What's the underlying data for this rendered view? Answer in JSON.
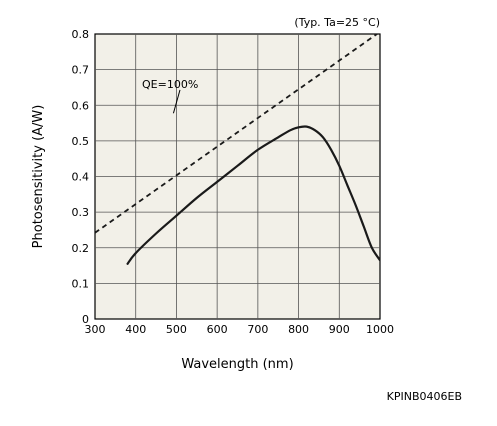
{
  "chart_data": {
    "type": "line",
    "note": "(Typ. Ta=25 °C)",
    "xlabel": "Wavelength (nm)",
    "ylabel": "Photosensitivity (A/W)",
    "xlim": [
      300,
      1000
    ],
    "ylim": [
      0,
      0.8
    ],
    "x_ticks": [
      300,
      400,
      500,
      600,
      700,
      800,
      900,
      1000
    ],
    "y_ticks": [
      "0",
      "0.1",
      "0.2",
      "0.3",
      "0.4",
      "0.5",
      "0.6",
      "0.7",
      "0.8"
    ],
    "grid": true,
    "background_color": "#f2f0e8",
    "series": [
      {
        "style": "solid",
        "x": [
          380,
          400,
          450,
          500,
          550,
          600,
          650,
          700,
          750,
          780,
          800,
          820,
          840,
          860,
          880,
          900,
          920,
          940,
          960,
          980,
          1000
        ],
        "y": [
          0.155,
          0.185,
          0.24,
          0.29,
          0.34,
          0.385,
          0.43,
          0.475,
          0.51,
          0.53,
          0.538,
          0.54,
          0.53,
          0.51,
          0.475,
          0.43,
          0.375,
          0.32,
          0.26,
          0.2,
          0.165
        ]
      },
      {
        "name": "QE=100%",
        "style": "dashed",
        "x": [
          300,
          1000
        ],
        "y": [
          0.242,
          0.806
        ]
      }
    ],
    "annotation": {
      "text": "QE=100%",
      "x": 440,
      "y": 0.66,
      "arrow_to": [
        500,
        0.6
      ]
    }
  },
  "figure_id": "KPINB0406EB"
}
